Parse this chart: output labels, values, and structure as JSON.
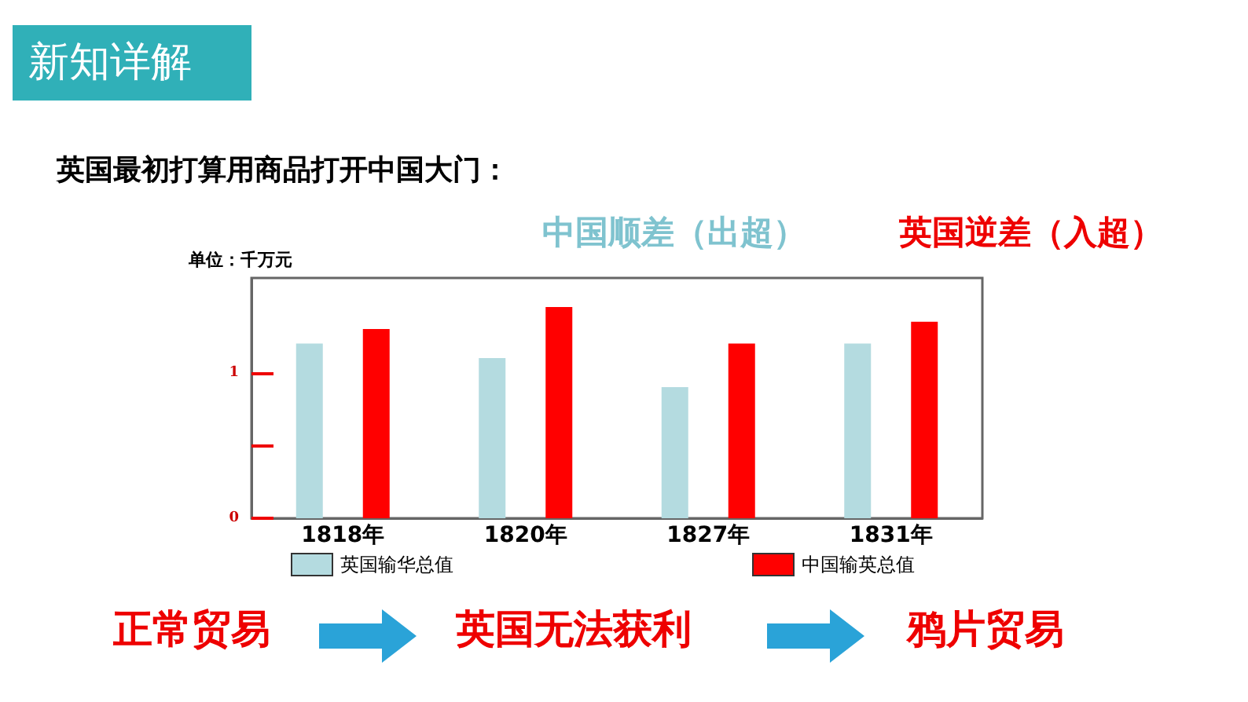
{
  "chart_data": {
    "type": "bar",
    "ylabel": "单位：千万元",
    "categories": [
      "1818年",
      "1820年",
      "1827年",
      "1831年"
    ],
    "series": [
      {
        "name": "英国输华总值",
        "color": "#b4dbe0",
        "values": [
          1.2,
          1.1,
          0.9,
          1.2
        ]
      },
      {
        "name": "中国输英总值",
        "color": "#ff0000",
        "values": [
          1.3,
          1.45,
          1.2,
          1.35
        ]
      }
    ],
    "ylim": [
      0,
      1.65
    ],
    "yticks": [
      0,
      {
        "value": 0.5,
        "label": null
      },
      1
    ],
    "grid": false,
    "legend": "bottom",
    "annotations": [
      "新知详解",
      "英国最初打算用商品打开中国大门：",
      "中国顺差（出超）",
      "英国逆差（入超）",
      "正常贸易",
      "英国无法获利",
      "鸦片贸易"
    ]
  }
}
